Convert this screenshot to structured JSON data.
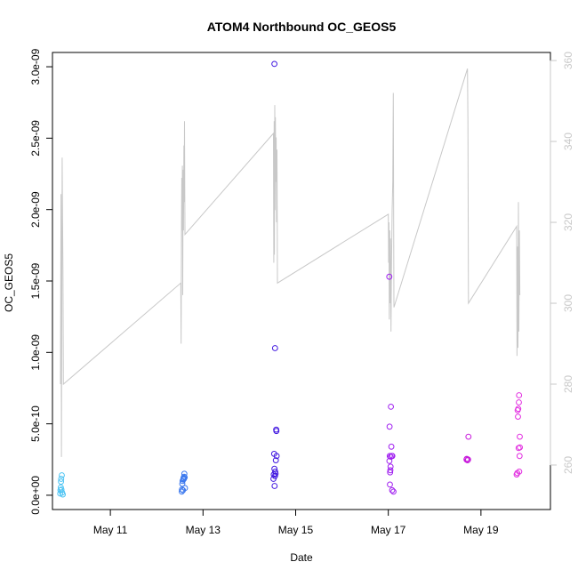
{
  "chart_data": {
    "type": "scatter",
    "title": "ATOM4 Northbound OC_GEOS5",
    "xlabel": "Date",
    "ylabel": "OC_GEOS5",
    "xlim": [
      "2016-05-09T18:00",
      "2016-05-20T12:00"
    ],
    "ylim": [
      -1e-10,
      3.1e-09
    ],
    "y2lim": [
      249,
      362
    ],
    "grid": false,
    "x_ticks": [
      {
        "value": "2016-05-11T00:00",
        "label": "May 11"
      },
      {
        "value": "2016-05-13T00:00",
        "label": "May 13"
      },
      {
        "value": "2016-05-15T00:00",
        "label": "May 15"
      },
      {
        "value": "2016-05-17T00:00",
        "label": "May 17"
      },
      {
        "value": "2016-05-19T00:00",
        "label": "May 19"
      }
    ],
    "y_ticks": [
      {
        "value": 0,
        "label": "0.0e+00"
      },
      {
        "value": 5e-10,
        "label": "5.0e-10"
      },
      {
        "value": 1e-09,
        "label": "1.0e-09"
      },
      {
        "value": 1.5e-09,
        "label": "1.5e-09"
      },
      {
        "value": 2e-09,
        "label": "2.0e-09"
      },
      {
        "value": 2.5e-09,
        "label": "2.5e-09"
      },
      {
        "value": 3e-09,
        "label": "3.0e-09"
      }
    ],
    "y2_ticks": [
      {
        "value": 260,
        "label": "260"
      },
      {
        "value": 280,
        "label": "280"
      },
      {
        "value": 300,
        "label": "300"
      },
      {
        "value": 320,
        "label": "320"
      },
      {
        "value": 340,
        "label": "340"
      },
      {
        "value": 360,
        "label": "360"
      }
    ],
    "secondary_line": {
      "color": "#c8c8c8",
      "points": [
        [
          "2016-05-09T22:10",
          280
        ],
        [
          "2016-05-09T22:25",
          327
        ],
        [
          "2016-05-09T22:40",
          262
        ],
        [
          "2016-05-09T23:00",
          336
        ],
        [
          "2016-05-09T23:25",
          308
        ],
        [
          "2016-05-09T23:40",
          280
        ],
        [
          "2016-05-12T12:30",
          305
        ],
        [
          "2016-05-12T12:40",
          290
        ],
        [
          "2016-05-12T12:50",
          320
        ],
        [
          "2016-05-12T13:00",
          331
        ],
        [
          "2016-05-12T13:10",
          318
        ],
        [
          "2016-05-12T13:20",
          334
        ],
        [
          "2016-05-12T13:30",
          302
        ],
        [
          "2016-05-12T13:40",
          333
        ],
        [
          "2016-05-12T13:55",
          318
        ],
        [
          "2016-05-12T14:05",
          339
        ],
        [
          "2016-05-12T14:15",
          325
        ],
        [
          "2016-05-12T14:25",
          345
        ],
        [
          "2016-05-12T14:40",
          317
        ],
        [
          "2016-05-14T12:30",
          342
        ],
        [
          "2016-05-14T12:40",
          310
        ],
        [
          "2016-05-14T12:50",
          345
        ],
        [
          "2016-05-14T13:00",
          312
        ],
        [
          "2016-05-14T13:10",
          349
        ],
        [
          "2016-05-14T13:20",
          323
        ],
        [
          "2016-05-14T13:30",
          346
        ],
        [
          "2016-05-14T13:45",
          330
        ],
        [
          "2016-05-14T13:55",
          341
        ],
        [
          "2016-05-14T14:05",
          320
        ],
        [
          "2016-05-14T14:20",
          338
        ],
        [
          "2016-05-14T14:35",
          305
        ],
        [
          "2016-05-17T00:00",
          322
        ],
        [
          "2016-05-17T00:10",
          310
        ],
        [
          "2016-05-17T00:20",
          320
        ],
        [
          "2016-05-17T00:30",
          296
        ],
        [
          "2016-05-17T00:45",
          318
        ],
        [
          "2016-05-17T00:55",
          300
        ],
        [
          "2016-05-17T01:10",
          316
        ],
        [
          "2016-05-17T01:25",
          293
        ],
        [
          "2016-05-17T01:40",
          310
        ],
        [
          "2016-05-17T02:00",
          323
        ],
        [
          "2016-05-17T02:20",
          330
        ],
        [
          "2016-05-17T02:35",
          352
        ],
        [
          "2016-05-17T02:55",
          299
        ],
        [
          "2016-05-18T17:00",
          358
        ],
        [
          "2016-05-18T17:15",
          345
        ],
        [
          "2016-05-18T17:30",
          300
        ],
        [
          "2016-05-19T18:30",
          319
        ],
        [
          "2016-05-19T18:40",
          287
        ],
        [
          "2016-05-19T18:55",
          314
        ],
        [
          "2016-05-19T19:10",
          289
        ],
        [
          "2016-05-19T19:25",
          325
        ],
        [
          "2016-05-19T19:40",
          293
        ],
        [
          "2016-05-19T19:55",
          318
        ],
        [
          "2016-05-19T20:10",
          302
        ]
      ]
    },
    "points": [
      [
        "2016-05-09T22:00",
        1.2e-11,
        "#4ec4f3"
      ],
      [
        "2016-05-09T22:10",
        3.5e-11,
        "#4ec4f3"
      ],
      [
        "2016-05-09T22:20",
        5.5e-11,
        "#4ec4f3"
      ],
      [
        "2016-05-09T22:25",
        9.5e-11,
        "#4ec4f3"
      ],
      [
        "2016-05-09T22:30",
        1.15e-10,
        "#4ec4f3"
      ],
      [
        "2016-05-09T22:40",
        4e-11,
        "#4ec4f3"
      ],
      [
        "2016-05-09T22:50",
        1.4e-10,
        "#4ec4f3"
      ],
      [
        "2016-05-09T23:00",
        1.8e-11,
        "#4ec4f3"
      ],
      [
        "2016-05-09T23:20",
        5e-12,
        "#4ec4f3"
      ],
      [
        "2016-05-12T13:00",
        2.5e-11,
        "#3b78ee"
      ],
      [
        "2016-05-12T13:05",
        4e-11,
        "#3b78ee"
      ],
      [
        "2016-05-12T13:15",
        8e-11,
        "#3b78ee"
      ],
      [
        "2016-05-12T13:25",
        1e-10,
        "#3b78ee"
      ],
      [
        "2016-05-12T13:35",
        3.5e-11,
        "#3b78ee"
      ],
      [
        "2016-05-12T13:45",
        1.1e-10,
        "#3b78ee"
      ],
      [
        "2016-05-12T13:55",
        1.2e-10,
        "#3b78ee"
      ],
      [
        "2016-05-12T14:05",
        1.15e-10,
        "#3b78ee"
      ],
      [
        "2016-05-12T14:10",
        1.3e-10,
        "#3b78ee"
      ],
      [
        "2016-05-12T14:20",
        1.5e-10,
        "#3b78ee"
      ],
      [
        "2016-05-12T14:30",
        1.25e-10,
        "#3b78ee"
      ],
      [
        "2016-05-12T14:40",
        5e-11,
        "#3b78ee"
      ],
      [
        "2016-05-14T13:00",
        3.02e-09,
        "#4016e0"
      ],
      [
        "2016-05-14T12:30",
        1.15e-10,
        "#4016e0"
      ],
      [
        "2016-05-14T12:40",
        1.45e-10,
        "#4016e0"
      ],
      [
        "2016-05-14T12:50",
        2.9e-10,
        "#4016e0"
      ],
      [
        "2016-05-14T13:00",
        1.85e-10,
        "#4016e0"
      ],
      [
        "2016-05-14T13:05",
        6.5e-11,
        "#4016e0"
      ],
      [
        "2016-05-14T13:15",
        1.35e-10,
        "#4016e0"
      ],
      [
        "2016-05-14T13:20",
        1.03e-09,
        "#4016e0"
      ],
      [
        "2016-05-14T13:25",
        1.65e-10,
        "#4016e0"
      ],
      [
        "2016-05-14T13:35",
        1.5e-10,
        "#4016e0"
      ],
      [
        "2016-05-14T13:45",
        2.45e-10,
        "#4016e0"
      ],
      [
        "2016-05-14T13:55",
        4.6e-10,
        "#4016e0"
      ],
      [
        "2016-05-14T14:00",
        4.5e-10,
        "#4016e0"
      ],
      [
        "2016-05-14T14:10",
        2.75e-10,
        "#4016e0"
      ],
      [
        "2016-05-17T00:30",
        1.53e-09,
        "#a020f0"
      ],
      [
        "2016-05-17T00:35",
        2.4e-10,
        "#a020f0"
      ],
      [
        "2016-05-17T00:40",
        4.8e-10,
        "#a020f0"
      ],
      [
        "2016-05-17T00:45",
        2.75e-10,
        "#a020f0"
      ],
      [
        "2016-05-17T00:50",
        7.5e-11,
        "#a020f0"
      ],
      [
        "2016-05-17T00:55",
        1.6e-10,
        "#a020f0"
      ],
      [
        "2016-05-17T01:05",
        1.75e-10,
        "#a020f0"
      ],
      [
        "2016-05-17T01:10",
        2e-10,
        "#a020f0"
      ],
      [
        "2016-05-17T01:15",
        2.7e-10,
        "#a020f0"
      ],
      [
        "2016-05-17T01:20",
        6.2e-10,
        "#a020f0"
      ],
      [
        "2016-05-17T01:35",
        3.4e-10,
        "#a020f0"
      ],
      [
        "2016-05-17T01:50",
        2.75e-10,
        "#a020f0"
      ],
      [
        "2016-05-17T02:05",
        2.75e-10,
        "#a020f0"
      ],
      [
        "2016-05-17T02:00",
        3.5e-11,
        "#a020f0"
      ],
      [
        "2016-05-17T02:40",
        2.5e-11,
        "#a020f0"
      ],
      [
        "2016-05-18T16:30",
        2.5e-10,
        "#c81ddc"
      ],
      [
        "2016-05-18T16:40",
        2.55e-10,
        "#c81ddc"
      ],
      [
        "2016-05-18T17:00",
        2.45e-10,
        "#c81ddc"
      ],
      [
        "2016-05-18T17:20",
        2.5e-10,
        "#c81ddc"
      ],
      [
        "2016-05-18T17:30",
        4.1e-10,
        "#c81ddc"
      ],
      [
        "2016-05-19T18:30",
        1.45e-10,
        "#e22ee0"
      ],
      [
        "2016-05-19T18:50",
        1.55e-10,
        "#e22ee0"
      ],
      [
        "2016-05-19T19:00",
        5.95e-10,
        "#e22ee0"
      ],
      [
        "2016-05-19T19:10",
        5.5e-10,
        "#e22ee0"
      ],
      [
        "2016-05-19T19:20",
        6.05e-10,
        "#e22ee0"
      ],
      [
        "2016-05-19T19:30",
        3.3e-10,
        "#e22ee0"
      ],
      [
        "2016-05-19T19:40",
        6.5e-10,
        "#e22ee0"
      ],
      [
        "2016-05-19T19:45",
        7e-10,
        "#e22ee0"
      ],
      [
        "2016-05-19T19:50",
        1.65e-10,
        "#e22ee0"
      ],
      [
        "2016-05-19T20:00",
        2.75e-10,
        "#e22ee0"
      ],
      [
        "2016-05-19T20:05",
        4.1e-10,
        "#e22ee0"
      ],
      [
        "2016-05-19T20:10",
        3.35e-10,
        "#e22ee0"
      ]
    ]
  }
}
